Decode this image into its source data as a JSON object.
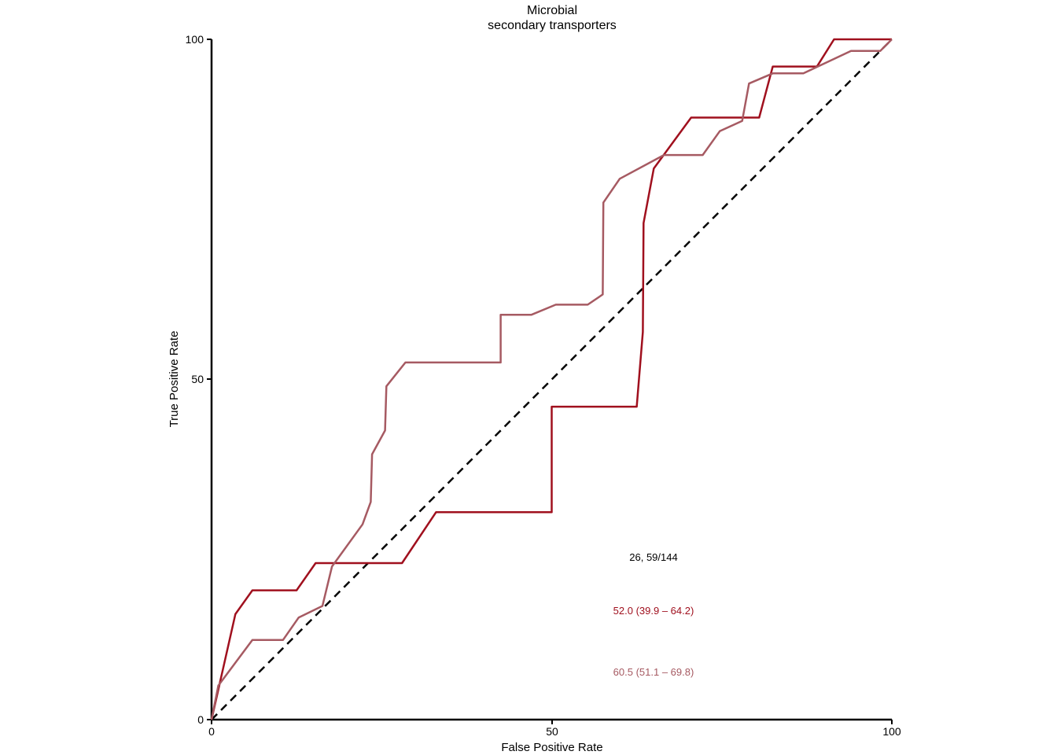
{
  "chart_data": {
    "type": "line",
    "title_line1": "Microbial",
    "title_line2": "secondary transporters",
    "xlabel": "False Positive Rate",
    "ylabel": "True Positive Rate",
    "xlim": [
      0,
      100
    ],
    "ylim": [
      0,
      100
    ],
    "xticks": [
      "0",
      "50",
      "100"
    ],
    "yticks": [
      "0",
      "50",
      "100"
    ],
    "diagonal": {
      "color": "#000000",
      "style": "dashed"
    },
    "series": [
      {
        "color": "#a0101e",
        "points": [
          [
            0,
            0
          ],
          [
            3.5,
            15.5
          ],
          [
            6,
            19
          ],
          [
            12.5,
            19
          ],
          [
            15.3,
            23
          ],
          [
            28,
            23
          ],
          [
            33,
            30.5
          ],
          [
            50,
            30.5
          ],
          [
            50,
            46
          ],
          [
            62.5,
            46
          ],
          [
            63.4,
            57
          ],
          [
            63.5,
            73
          ],
          [
            65,
            81
          ],
          [
            70.5,
            88.5
          ],
          [
            80.5,
            88.5
          ],
          [
            82.5,
            96
          ],
          [
            89,
            96
          ],
          [
            91.5,
            100
          ],
          [
            100,
            100
          ]
        ]
      },
      {
        "color": "#a65a62",
        "points": [
          [
            0,
            0
          ],
          [
            1,
            5
          ],
          [
            6,
            11.7
          ],
          [
            10.5,
            11.7
          ],
          [
            12.8,
            15
          ],
          [
            16.3,
            16.7
          ],
          [
            17.7,
            22.5
          ],
          [
            22.2,
            28.7
          ],
          [
            23.4,
            32
          ],
          [
            23.6,
            39
          ],
          [
            25.5,
            42.5
          ],
          [
            25.7,
            49
          ],
          [
            28.5,
            52.5
          ],
          [
            42.5,
            52.5
          ],
          [
            42.5,
            59.5
          ],
          [
            47,
            59.5
          ],
          [
            50.6,
            61
          ],
          [
            55.3,
            61
          ],
          [
            57.5,
            62.5
          ],
          [
            57.6,
            76
          ],
          [
            60,
            79.5
          ],
          [
            66.5,
            83
          ],
          [
            72.2,
            83
          ],
          [
            74.7,
            86.5
          ],
          [
            78,
            88
          ],
          [
            79,
            93.5
          ],
          [
            82.5,
            95
          ],
          [
            87,
            95
          ],
          [
            94,
            98.3
          ],
          [
            98.3,
            98.3
          ],
          [
            100,
            100
          ]
        ]
      }
    ],
    "annotations": [
      {
        "text": "26, 59/144",
        "color": "#000000"
      },
      {
        "text": "52.0 (39.9 – 64.2)",
        "color": "#a0101e"
      },
      {
        "text": "60.5 (51.1 – 69.8)",
        "color": "#a65a62"
      }
    ]
  }
}
